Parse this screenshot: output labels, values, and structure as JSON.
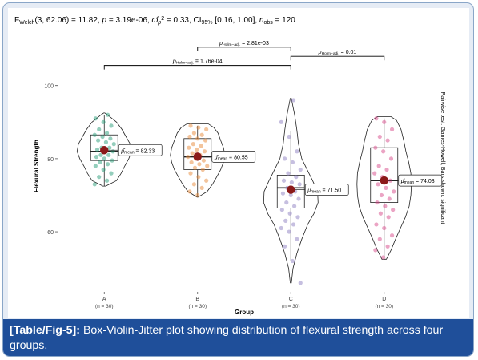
{
  "chart_data": {
    "type": "violin-box-jitter",
    "title_segments": [
      {
        "t": "F"
      },
      {
        "t": "Welch",
        "sub": true
      },
      {
        "t": "(3, 62.06) = 11.82, "
      },
      {
        "t": "p",
        "italic": true
      },
      {
        "t": " = 3.19e-06, "
      },
      {
        "t": "ω",
        "italic": true,
        "hat": true
      },
      {
        "t": "p",
        "sub": true,
        "italic": true
      },
      {
        "t": "2",
        "sup": true
      },
      {
        "t": " = 0.33, CI"
      },
      {
        "t": "95%",
        "sub": true
      },
      {
        "t": " [0.16, 1.00], "
      },
      {
        "t": "n",
        "italic": true
      },
      {
        "t": "obs",
        "sub": true
      },
      {
        "t": " = 120"
      }
    ],
    "xlabel": "Group",
    "ylabel": "Flexural Strength",
    "right_label": "Pairwise test: Games-Howell; Bars shown: significant",
    "ylim": [
      44,
      112
    ],
    "yticks": [
      60,
      80,
      100
    ],
    "groups": [
      {
        "name": "A",
        "n_label": "(n = 30)",
        "color": "#2a9d79",
        "mean": 82.33,
        "mean_label": "82.33",
        "box": {
          "q1": 79.5,
          "median": 82.0,
          "q3": 86.5,
          "wlo": 72.5,
          "whi": 92.0
        },
        "violin": {
          "min": 72.5,
          "max": 92.5,
          "profile": [
            [
              72.5,
              0.05
            ],
            [
              74,
              0.45
            ],
            [
              76,
              0.62
            ],
            [
              78,
              0.75
            ],
            [
              80,
              0.9
            ],
            [
              82,
              1.0
            ],
            [
              84,
              0.95
            ],
            [
              86,
              0.8
            ],
            [
              88,
              0.65
            ],
            [
              90,
              0.45
            ],
            [
              92,
              0.12
            ],
            [
              92.5,
              0.02
            ]
          ]
        },
        "points": [
          73,
          74,
          75,
          76,
          77,
          78,
          78.5,
          79,
          79.5,
          80,
          80.5,
          81,
          81,
          82,
          82,
          82.5,
          83,
          83,
          84,
          84.5,
          85,
          85.5,
          86,
          86.5,
          87,
          88,
          89,
          90,
          91,
          92
        ]
      },
      {
        "name": "B",
        "n_label": "(n = 30)",
        "color": "#e8893a",
        "mean": 80.55,
        "mean_label": "80.55",
        "box": {
          "q1": 77.0,
          "median": 80.5,
          "q3": 85.5,
          "wlo": 69.5,
          "whi": 89.0
        },
        "violin": {
          "min": 69.5,
          "max": 89.5,
          "profile": [
            [
              69.5,
              0.02
            ],
            [
              71,
              0.35
            ],
            [
              73,
              0.55
            ],
            [
              75,
              0.7
            ],
            [
              77,
              0.85
            ],
            [
              79,
              0.95
            ],
            [
              81,
              1.0
            ],
            [
              83,
              0.95
            ],
            [
              85,
              0.85
            ],
            [
              87,
              0.75
            ],
            [
              88.5,
              0.6
            ],
            [
              89.5,
              0.4
            ]
          ]
        },
        "points": [
          70,
          71,
          72,
          73,
          74,
          75,
          76,
          77,
          77.5,
          78,
          78.5,
          79,
          79.5,
          80,
          80.5,
          81,
          81.5,
          82,
          82.5,
          83,
          83.5,
          84,
          85,
          85.5,
          86,
          86.5,
          87,
          88,
          88.5,
          89
        ]
      },
      {
        "name": "C",
        "n_label": "(n = 30)",
        "color": "#8e7fc2",
        "mean": 71.5,
        "mean_label": "71.50",
        "box": {
          "q1": 66.5,
          "median": 72.0,
          "q3": 75.5,
          "wlo": 52.0,
          "whi": 87.5
        },
        "violin": {
          "min": 46.0,
          "max": 96.5,
          "profile": [
            [
              46,
              0.02
            ],
            [
              50,
              0.08
            ],
            [
              54,
              0.22
            ],
            [
              58,
              0.4
            ],
            [
              62,
              0.62
            ],
            [
              65,
              0.85
            ],
            [
              68,
              1.0
            ],
            [
              71,
              0.98
            ],
            [
              74,
              0.8
            ],
            [
              77,
              0.6
            ],
            [
              80,
              0.4
            ],
            [
              84,
              0.28
            ],
            [
              88,
              0.22
            ],
            [
              92,
              0.14
            ],
            [
              96.5,
              0.02
            ]
          ]
        },
        "points": [
          46,
          52,
          56,
          58,
          60,
          61,
          62,
          63,
          64,
          65,
          66,
          67,
          68,
          69,
          70,
          70.5,
          71,
          72,
          73,
          73.5,
          74,
          75,
          76,
          77,
          79,
          80,
          82,
          86,
          90,
          96
        ]
      },
      {
        "name": "D",
        "n_label": "(n = 30)",
        "color": "#d84a8a",
        "mean": 74.03,
        "mean_label": "74.03",
        "box": {
          "q1": 68.0,
          "median": 74.0,
          "q3": 83.0,
          "wlo": 53.0,
          "whi": 91.0
        },
        "violin": {
          "min": 52.5,
          "max": 91.5,
          "profile": [
            [
              52.5,
              0.08
            ],
            [
              55,
              0.25
            ],
            [
              58,
              0.42
            ],
            [
              61,
              0.6
            ],
            [
              64,
              0.78
            ],
            [
              67,
              0.92
            ],
            [
              70,
              0.98
            ],
            [
              73,
              1.0
            ],
            [
              76,
              0.98
            ],
            [
              79,
              0.9
            ],
            [
              82,
              0.8
            ],
            [
              85,
              0.72
            ],
            [
              88,
              0.62
            ],
            [
              90.5,
              0.45
            ],
            [
              91.5,
              0.25
            ]
          ]
        },
        "points": [
          53,
          55,
          56,
          58,
          59,
          61,
          62,
          64,
          65,
          66,
          67,
          68,
          69,
          70,
          71,
          72,
          73,
          74,
          75,
          76,
          77,
          78,
          80,
          82,
          83,
          85,
          86,
          88,
          90,
          91
        ]
      }
    ],
    "comparisons": [
      {
        "from": "C",
        "to": "D",
        "y": 108.0,
        "label_segments": [
          {
            "t": "p",
            "italic": true
          },
          {
            "t": "Holm−adj.",
            "sub": true
          },
          {
            "t": " = 0.01"
          }
        ]
      },
      {
        "from": "B",
        "to": "C",
        "y": 110.5,
        "label_segments": [
          {
            "t": "p",
            "italic": true
          },
          {
            "t": "Holm−adj.",
            "sub": true
          },
          {
            "t": " = 2.81e-03"
          }
        ]
      },
      {
        "from": "A",
        "to": "C",
        "y": 105.5,
        "label_segments": [
          {
            "t": "p",
            "italic": true
          },
          {
            "t": "Holm−adj.",
            "sub": true
          },
          {
            "t": " = 1.76e-04"
          }
        ]
      }
    ],
    "mean_marker_color": "#8b1a1a",
    "mean_label_prefix": "μ̂",
    "mean_label_sub": "mean"
  },
  "caption": {
    "label": "[Table/Fig-5]:",
    "text": " Box-Violin-Jitter plot showing distribution of flexural strength across four groups."
  }
}
